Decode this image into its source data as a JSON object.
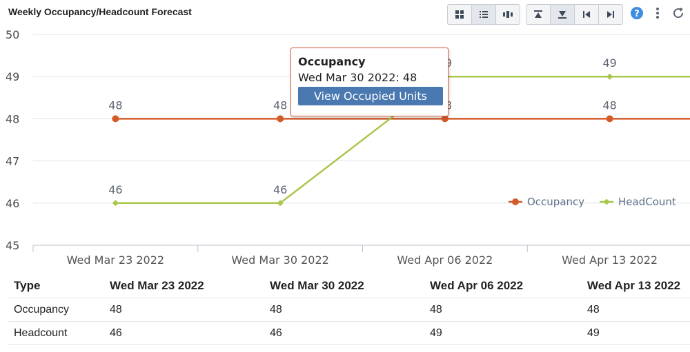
{
  "title": "Weekly Occupancy/Headcount Forecast",
  "toolbar": {
    "view_buttons": [
      "grid-view-icon",
      "list-view-icon",
      "column-view-icon"
    ],
    "nav_buttons": [
      "collapse-up-icon",
      "expand-down-icon",
      "first-page-icon",
      "last-page-icon"
    ],
    "icons": [
      "help-icon",
      "more-vertical-icon",
      "refresh-icon"
    ]
  },
  "colors": {
    "occupancy": "#d35b2a",
    "headcount": "#a8c64a",
    "accent": "#4a78b0"
  },
  "chart_data": {
    "type": "line",
    "categories": [
      "Wed Mar 23 2022",
      "Wed Mar 30 2022",
      "Wed Apr 06 2022",
      "Wed Apr 13 2022"
    ],
    "series": [
      {
        "name": "Occupancy",
        "values": [
          48,
          48,
          48,
          48
        ],
        "color": "#d35b2a",
        "marker": "circle"
      },
      {
        "name": "HeadCount",
        "values": [
          46,
          46,
          49,
          49
        ],
        "color": "#a8c64a",
        "marker": "diamond"
      }
    ],
    "ylim": [
      45,
      50
    ],
    "yticks": [
      45,
      46,
      47,
      48,
      49,
      50
    ],
    "grid": true,
    "legend": "right",
    "title": "",
    "xlabel": "",
    "ylabel": ""
  },
  "tooltip": {
    "title": "Occupancy",
    "line": "Wed Mar 30 2022: 48",
    "button": "View Occupied Units"
  },
  "table": {
    "headers": [
      "Type",
      "Wed Mar 23 2022",
      "Wed Mar 30 2022",
      "Wed Apr 06 2022",
      "Wed Apr 13 2022"
    ],
    "rows": [
      [
        "Occupancy",
        "48",
        "48",
        "48",
        "48"
      ],
      [
        "Headcount",
        "46",
        "46",
        "49",
        "49"
      ]
    ]
  }
}
